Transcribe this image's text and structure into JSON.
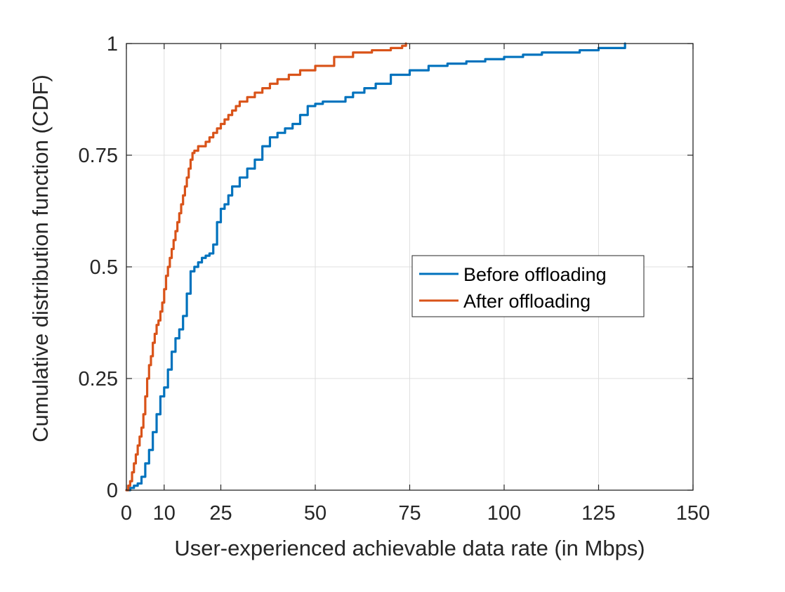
{
  "chart_data": {
    "type": "line",
    "title": "",
    "xlabel": "User-experienced achievable data rate (in Mbps)",
    "ylabel": "Cumulative distribution function (CDF)",
    "xlim": [
      0,
      150
    ],
    "ylim": [
      0,
      1
    ],
    "xticks": [
      0,
      10,
      25,
      50,
      75,
      100,
      125,
      150
    ],
    "yticks": [
      0,
      0.25,
      0.5,
      0.75,
      1
    ],
    "ytick_labels": [
      "0",
      "0.25",
      "0.5",
      "0.75",
      "1"
    ],
    "grid": true,
    "box": true,
    "legend_position": "center-right",
    "series": [
      {
        "name": "Before offloading",
        "color": "#0072BD",
        "x": [
          0,
          1,
          2,
          3,
          4,
          5,
          6,
          7,
          8,
          9,
          10,
          11,
          12,
          13,
          14,
          15,
          16,
          17,
          18,
          19,
          20,
          21,
          22,
          23,
          24,
          25,
          26,
          27,
          28,
          29,
          30,
          32,
          34,
          36,
          38,
          40,
          42,
          44,
          46,
          48,
          50,
          52,
          55,
          58,
          60,
          63,
          66,
          70,
          75,
          80,
          85,
          90,
          95,
          100,
          105,
          110,
          115,
          120,
          125,
          130,
          132
        ],
        "y": [
          0,
          0.005,
          0.01,
          0.015,
          0.03,
          0.06,
          0.09,
          0.13,
          0.17,
          0.21,
          0.23,
          0.27,
          0.31,
          0.34,
          0.36,
          0.39,
          0.44,
          0.49,
          0.5,
          0.51,
          0.52,
          0.525,
          0.53,
          0.55,
          0.6,
          0.63,
          0.64,
          0.66,
          0.68,
          0.68,
          0.7,
          0.72,
          0.74,
          0.77,
          0.79,
          0.8,
          0.81,
          0.82,
          0.84,
          0.86,
          0.865,
          0.87,
          0.87,
          0.88,
          0.89,
          0.9,
          0.91,
          0.93,
          0.94,
          0.95,
          0.955,
          0.96,
          0.965,
          0.97,
          0.975,
          0.98,
          0.98,
          0.985,
          0.99,
          0.99,
          1.0
        ]
      },
      {
        "name": "After offloading",
        "color": "#D95319",
        "x": [
          0,
          0.5,
          1,
          1.5,
          2,
          2.5,
          3,
          3.5,
          4,
          4.5,
          5,
          5.5,
          6,
          6.5,
          7,
          7.5,
          8,
          8.5,
          9,
          9.5,
          10,
          10.5,
          11,
          11.5,
          12,
          12.5,
          13,
          13.5,
          14,
          14.5,
          15,
          15.5,
          16,
          16.5,
          17,
          17.5,
          18,
          19,
          20,
          21,
          22,
          23,
          24,
          25,
          26,
          27,
          28,
          29,
          30,
          32,
          34,
          36,
          38,
          40,
          43,
          46,
          50,
          55,
          60,
          65,
          70,
          73,
          74
        ],
        "y": [
          0,
          0.01,
          0.02,
          0.04,
          0.06,
          0.08,
          0.1,
          0.12,
          0.14,
          0.17,
          0.21,
          0.25,
          0.28,
          0.3,
          0.33,
          0.35,
          0.37,
          0.38,
          0.4,
          0.42,
          0.45,
          0.48,
          0.5,
          0.52,
          0.54,
          0.56,
          0.58,
          0.6,
          0.62,
          0.64,
          0.66,
          0.68,
          0.7,
          0.72,
          0.74,
          0.755,
          0.76,
          0.77,
          0.77,
          0.78,
          0.79,
          0.8,
          0.81,
          0.82,
          0.83,
          0.84,
          0.85,
          0.86,
          0.87,
          0.88,
          0.89,
          0.9,
          0.91,
          0.92,
          0.93,
          0.94,
          0.95,
          0.97,
          0.98,
          0.985,
          0.99,
          0.995,
          1.0
        ]
      }
    ]
  }
}
